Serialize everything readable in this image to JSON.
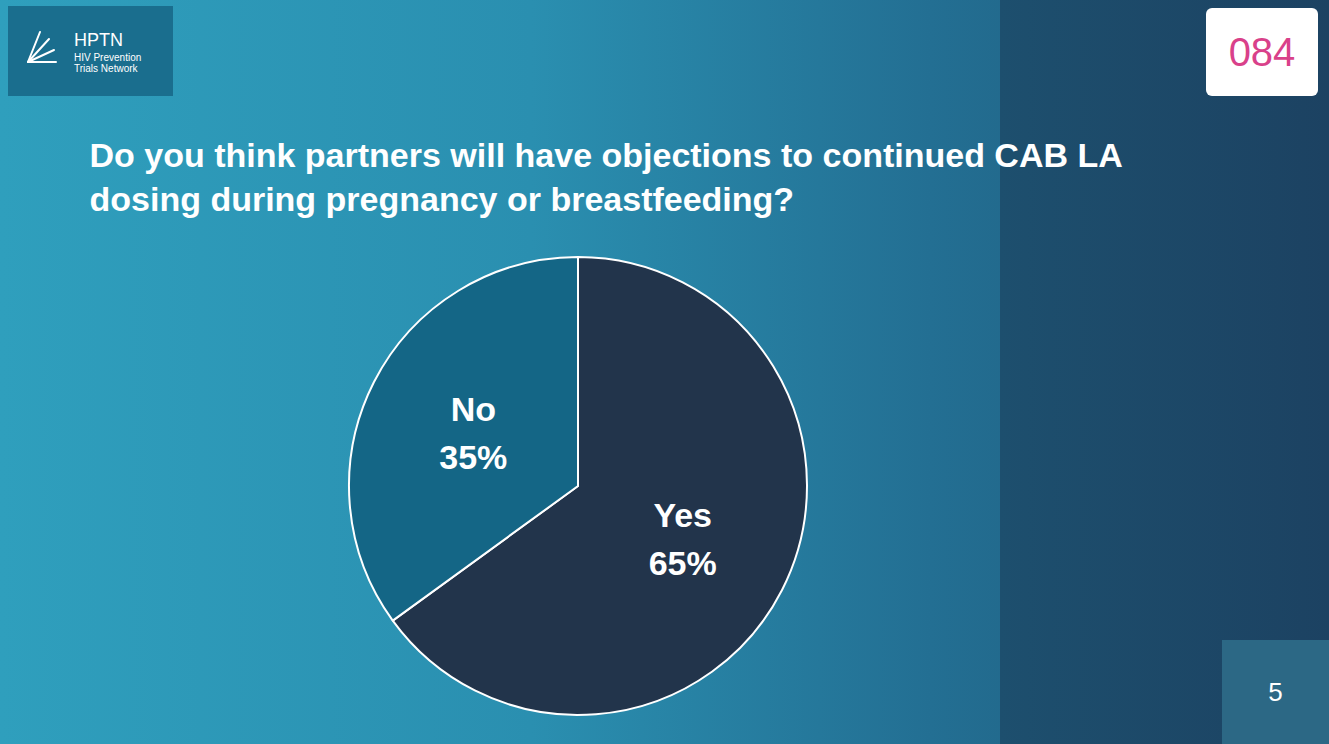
{
  "chart_data": {
    "type": "pie",
    "title": "Do you think partners will have objections to continued CAB LA dosing during pregnancy or breastfeeding?",
    "categories": [
      "Yes",
      "No"
    ],
    "values": [
      65,
      35
    ],
    "value_labels": [
      "65%",
      "35%"
    ],
    "colors": [
      "#22344b",
      "#146686"
    ],
    "data_labels": true,
    "legend": false
  },
  "slide": {
    "logo": [
      "HPTN",
      "HIV Prevention",
      "Trials Network"
    ],
    "badge": "084",
    "page": "5"
  }
}
